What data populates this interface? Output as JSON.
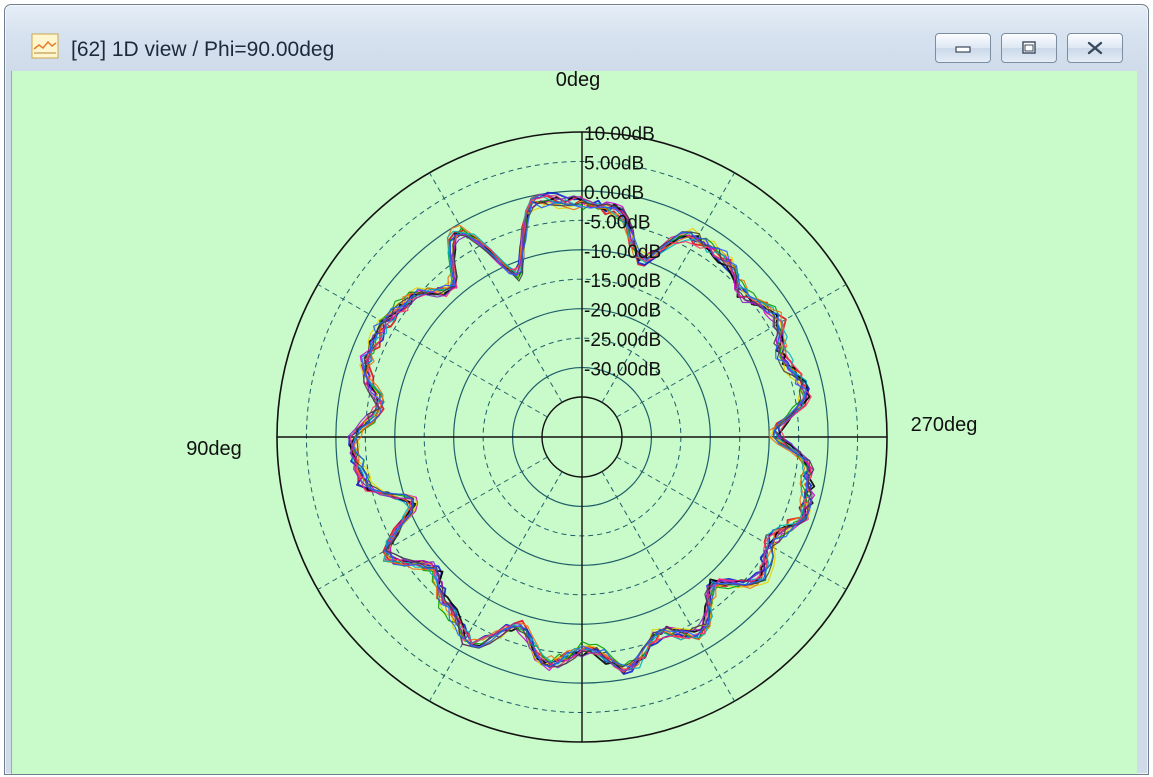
{
  "window": {
    "title": "[62] 1D view / Phi=90.00deg",
    "controls": {
      "minimize": "minimize",
      "maximize": "maximize",
      "close": "close"
    }
  },
  "colors": {
    "plot_background": "#c9fac9",
    "grid": "#1e5e6a",
    "axis": "#111111"
  },
  "chart_data": {
    "type": "line",
    "subtype": "polar",
    "angle_labels": {
      "top": "0deg",
      "left": "90deg",
      "right": "270deg"
    },
    "radial_tick_labels": [
      "10.00dB",
      "5.00dB",
      "0.00dB",
      "-5.00dB",
      "-10.00dB",
      "-15.00dB",
      "-20.00dB",
      "-25.00dB",
      "-30.00dB"
    ],
    "rlim": [
      -35,
      10
    ],
    "units": "dB",
    "angle_step_deg": 10,
    "series_colors": [
      "#e01020",
      "#1020d0",
      "#000000",
      "#d000d0",
      "#e8d000",
      "#00a000",
      "#f07010",
      "#00b0c0",
      "#ff3070",
      "#8030c0",
      "#404040",
      "#2060ff"
    ],
    "angles_deg": [
      0,
      10,
      20,
      30,
      40,
      50,
      60,
      70,
      80,
      90,
      100,
      110,
      120,
      130,
      140,
      150,
      160,
      170,
      180,
      190,
      200,
      210,
      220,
      230,
      240,
      250,
      260,
      270,
      280,
      290,
      300,
      310,
      320,
      330,
      340,
      350
    ],
    "base_values_db": [
      -2,
      -1,
      -12,
      -1,
      -8,
      -4,
      -3,
      -3,
      -7,
      -3,
      -4,
      -11,
      -3,
      -8,
      -5,
      -2,
      -8,
      -3,
      -6,
      -2,
      -6,
      -3,
      -8,
      -3,
      -5,
      -2,
      -3,
      -9,
      -3,
      -5,
      -3,
      -5,
      -3,
      -3,
      -10,
      -3
    ]
  }
}
